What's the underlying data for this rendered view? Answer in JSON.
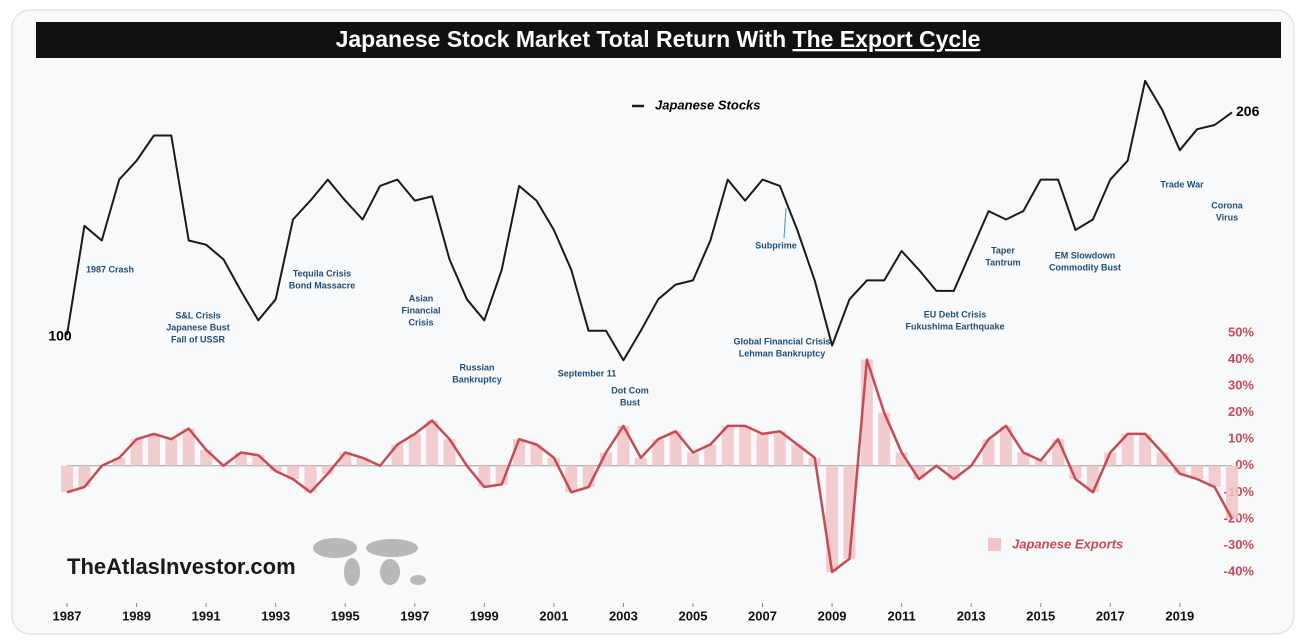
{
  "chart_data": {
    "type": "line",
    "title": "Japanese Stock Market Total Return With ",
    "title_emphasis": "The Export Cycle",
    "watermark": "TheAtlasInvestor.com",
    "x": [
      1987,
      1987.5,
      1988,
      1988.5,
      1989,
      1989.5,
      1990,
      1990.5,
      1991,
      1991.5,
      1992,
      1992.5,
      1993,
      1993.5,
      1994,
      1994.5,
      1995,
      1995.5,
      1996,
      1996.5,
      1997,
      1997.5,
      1998,
      1998.5,
      1999,
      1999.5,
      2000,
      2000.5,
      2001,
      2001.5,
      2002,
      2002.5,
      2003,
      2003.5,
      2004,
      2004.5,
      2005,
      2005.5,
      2006,
      2006.5,
      2007,
      2007.5,
      2008,
      2008.5,
      2009,
      2009.5,
      2010,
      2010.5,
      2011,
      2011.5,
      2012,
      2012.5,
      2013,
      2013.5,
      2014,
      2014.5,
      2015,
      2015.5,
      2016,
      2016.5,
      2017,
      2017.5,
      2018,
      2018.5,
      2019,
      2019.5,
      2020,
      2020.5
    ],
    "xlim": [
      1987,
      2020.5
    ],
    "xticks": [
      1987,
      1989,
      1991,
      1993,
      1995,
      1997,
      1999,
      2001,
      2003,
      2005,
      2007,
      2009,
      2011,
      2013,
      2015,
      2017,
      2019
    ],
    "y2lim": [
      -40,
      50
    ],
    "y2ticks": [
      {
        "value": 50,
        "label": "50%"
      },
      {
        "value": 40,
        "label": "40%"
      },
      {
        "value": 30,
        "label": "30%"
      },
      {
        "value": 20,
        "label": "20%"
      },
      {
        "value": 10,
        "label": "10%"
      },
      {
        "value": 0,
        "label": "0%"
      },
      {
        "value": -10,
        "label": "-10%"
      },
      {
        "value": -20,
        "label": "-20%"
      },
      {
        "value": -30,
        "label": "-30%"
      },
      {
        "value": -40,
        "label": "-40%"
      }
    ],
    "series": [
      {
        "name": "Japanese Stocks",
        "color": "#1a1a1a",
        "values": [
          100,
          152,
          145,
          174,
          183,
          195,
          195,
          145,
          143,
          136,
          121,
          107,
          117,
          155,
          164,
          174,
          164,
          155,
          171,
          174,
          164,
          166,
          136,
          117,
          107,
          131,
          171,
          164,
          150,
          131,
          102,
          102,
          88,
          102,
          117,
          124,
          126,
          145,
          174,
          164,
          174,
          171,
          150,
          126,
          95,
          117,
          126,
          126,
          140,
          131,
          121,
          121,
          140,
          159,
          155,
          159,
          174,
          174,
          150,
          155,
          174,
          183,
          221,
          207,
          188,
          198,
          200,
          206
        ]
      },
      {
        "name": "Japanese Exports",
        "color": "#c94a55",
        "bar_color": "#f2c4c8",
        "axis": "y2",
        "values": [
          -10,
          -8,
          0,
          3,
          10,
          12,
          10,
          14,
          6,
          0,
          5,
          4,
          -2,
          -5,
          -10,
          -3,
          5,
          3,
          0,
          8,
          12,
          17,
          10,
          0,
          -8,
          -7,
          10,
          8,
          3,
          -10,
          -8,
          5,
          15,
          3,
          10,
          13,
          5,
          8,
          15,
          15,
          12,
          13,
          8,
          3,
          -40,
          -35,
          40,
          20,
          5,
          -5,
          0,
          -5,
          0,
          10,
          15,
          5,
          2,
          10,
          -5,
          -10,
          5,
          12,
          12,
          5,
          -3,
          -5,
          -8,
          -20
        ]
      }
    ],
    "annotations": [
      [
        "1987 Crash"
      ],
      [
        "S&L Crisis",
        "Japanese Bust",
        "Fall of USSR"
      ],
      [
        "Tequila Crisis",
        "Bond Massacre"
      ],
      [
        "Asian",
        "Financial",
        "Crisis"
      ],
      [
        "Russian",
        "Bankruptcy"
      ],
      [
        "September 11"
      ],
      [
        "Dot Com",
        "Bust"
      ],
      [
        "Subprime"
      ],
      [
        "Global Financial Crisis",
        "Lehman Bankruptcy"
      ],
      [
        "EU Debt Crisis",
        "Fukushima Earthquake"
      ],
      [
        "Taper",
        "Tantrum"
      ],
      [
        "EM Slowdown",
        "Commodity Bust"
      ],
      [
        "Trade War"
      ],
      [
        "Corona",
        "Virus"
      ]
    ]
  }
}
